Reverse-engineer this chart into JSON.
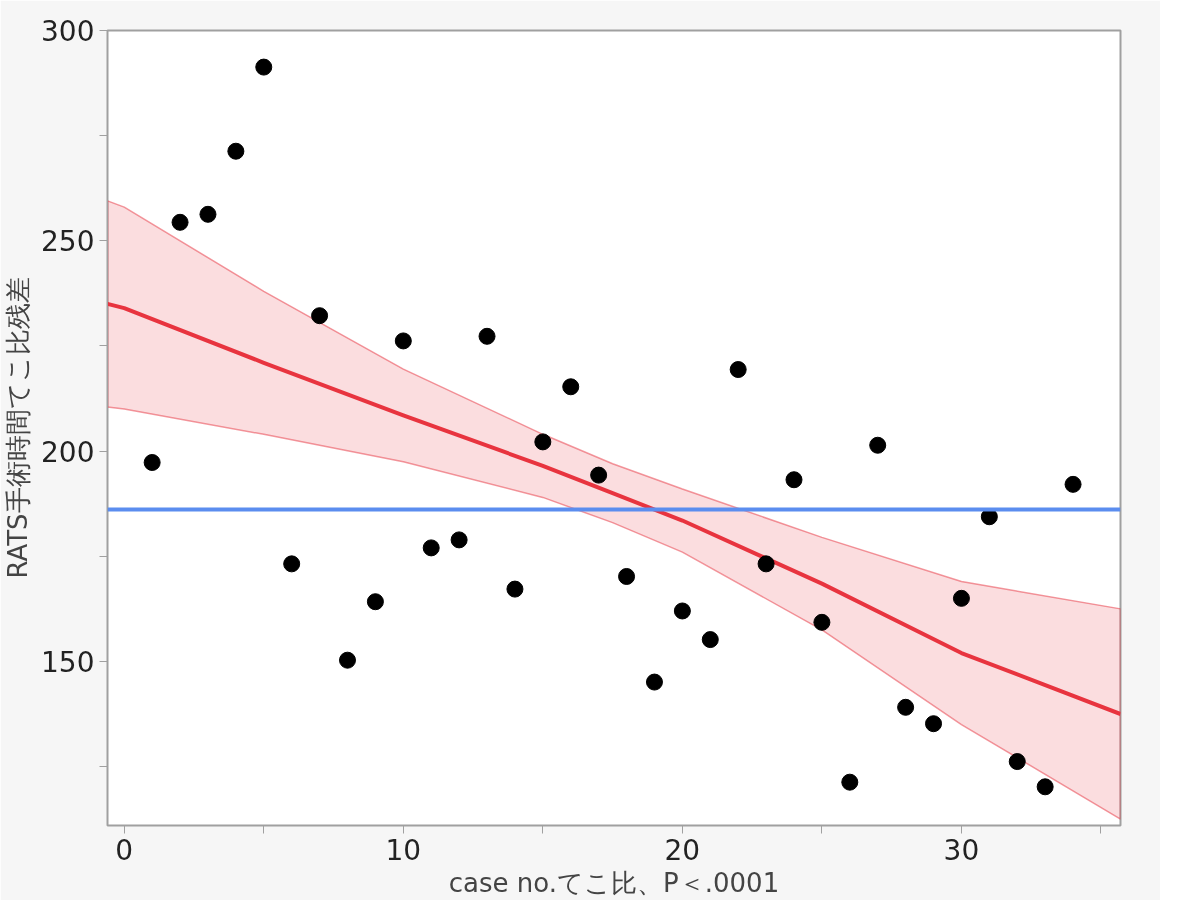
{
  "chart_data": {
    "type": "scatter",
    "xlabel": "case no.てこ比、P＜.0001",
    "ylabel": "RATS手術時間てこ比残差",
    "grid": false,
    "xlim": [
      -0.6,
      35.7
    ],
    "ylim": [
      111,
      300
    ],
    "xticks": [
      0,
      {
        "value": 5,
        "label": null
      },
      10,
      {
        "value": 15,
        "label": null
      },
      20,
      {
        "value": 25,
        "label": null
      },
      30,
      {
        "value": 35,
        "label": null
      }
    ],
    "yticks": [
      {
        "value": 125,
        "label": null
      },
      150,
      {
        "value": 175,
        "label": null
      },
      200,
      {
        "value": 225,
        "label": null
      },
      250,
      {
        "value": 275,
        "label": null
      },
      300
    ],
    "ref_lines": [
      {
        "axis": "y",
        "value": 186.1,
        "color": "#5b8def"
      }
    ],
    "series": [
      {
        "type": "line",
        "color": "#e8343f",
        "x": [
          -0.6,
          0,
          5,
          10,
          15,
          17.5,
          20,
          25,
          30,
          35.7
        ],
        "values": [
          235,
          234,
          221,
          208.5,
          196.5,
          190,
          183.5,
          168.5,
          152,
          137.5
        ],
        "lower": [
          210.5,
          210,
          204,
          197.5,
          189,
          183,
          176,
          157.5,
          135,
          112.5
        ],
        "upper": [
          259.5,
          258,
          238,
          219.5,
          204,
          197,
          191,
          179.5,
          169,
          162.5
        ]
      },
      {
        "marker": "circle",
        "color": "#000000",
        "x": [
          1,
          2,
          3,
          4,
          5,
          6,
          7,
          8,
          9,
          10,
          11,
          12,
          13,
          14,
          15,
          16,
          17,
          18,
          19,
          20,
          21,
          22,
          23,
          24,
          25,
          26,
          27,
          28,
          29,
          30,
          31,
          32,
          33,
          34
        ],
        "values": [
          197.3,
          254.4,
          256.3,
          271.3,
          291.3,
          173.2,
          232.2,
          150.3,
          164.2,
          226.2,
          177.0,
          178.9,
          227.3,
          167.2,
          202.2,
          215.3,
          194.3,
          170.2,
          145.1,
          162.0,
          155.2,
          219.4,
          173.2,
          193.2,
          159.3,
          121.3,
          201.4,
          139.1,
          135.2,
          165.0,
          184.4,
          126.2,
          120.2,
          192.1
        ]
      }
    ]
  }
}
